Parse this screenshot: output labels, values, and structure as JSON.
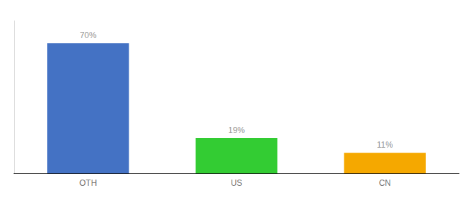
{
  "chart_data": {
    "type": "bar",
    "categories": [
      "OTH",
      "US",
      "CN"
    ],
    "values": [
      70,
      19,
      11
    ],
    "value_labels": [
      "70%",
      "19%",
      "11%"
    ],
    "colors": [
      "#4472c4",
      "#33cc33",
      "#f5a800"
    ],
    "ylim": [
      0,
      82
    ],
    "data_labels": true,
    "tick_labels": "x",
    "grid": false
  }
}
